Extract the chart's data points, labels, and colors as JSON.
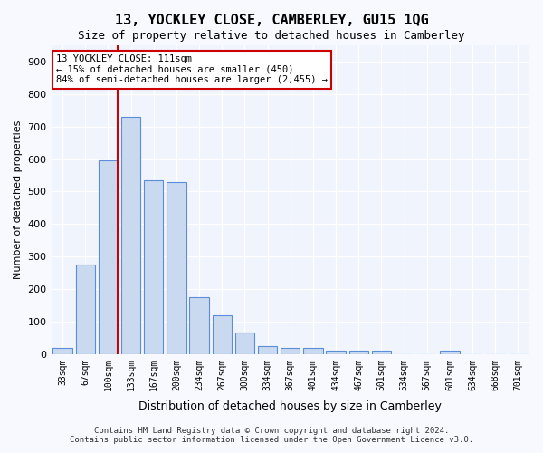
{
  "title": "13, YOCKLEY CLOSE, CAMBERLEY, GU15 1QG",
  "subtitle": "Size of property relative to detached houses in Camberley",
  "xlabel": "Distribution of detached houses by size in Camberley",
  "ylabel": "Number of detached properties",
  "bar_color": "#c9d9f0",
  "bar_edge_color": "#5b8dd9",
  "background_color": "#f0f4fc",
  "grid_color": "#ffffff",
  "categories": [
    "33sqm",
    "67sqm",
    "100sqm",
    "133sqm",
    "167sqm",
    "200sqm",
    "234sqm",
    "267sqm",
    "300sqm",
    "334sqm",
    "367sqm",
    "401sqm",
    "434sqm",
    "467sqm",
    "501sqm",
    "534sqm",
    "567sqm",
    "601sqm",
    "634sqm",
    "668sqm",
    "701sqm"
  ],
  "values": [
    20,
    275,
    595,
    730,
    535,
    530,
    175,
    120,
    65,
    25,
    20,
    20,
    10,
    10,
    10,
    0,
    0,
    10,
    0,
    0,
    0
  ],
  "ylim": [
    0,
    950
  ],
  "yticks": [
    0,
    100,
    200,
    300,
    400,
    500,
    600,
    700,
    800,
    900
  ],
  "property_line_x": 2.0,
  "annotation_text": "13 YOCKLEY CLOSE: 111sqm\n← 15% of detached houses are smaller (450)\n84% of semi-detached houses are larger (2,455) →",
  "annotation_box_color": "#ffffff",
  "annotation_box_edge_color": "#cc0000",
  "footer_line1": "Contains HM Land Registry data © Crown copyright and database right 2024.",
  "footer_line2": "Contains public sector information licensed under the Open Government Licence v3.0."
}
